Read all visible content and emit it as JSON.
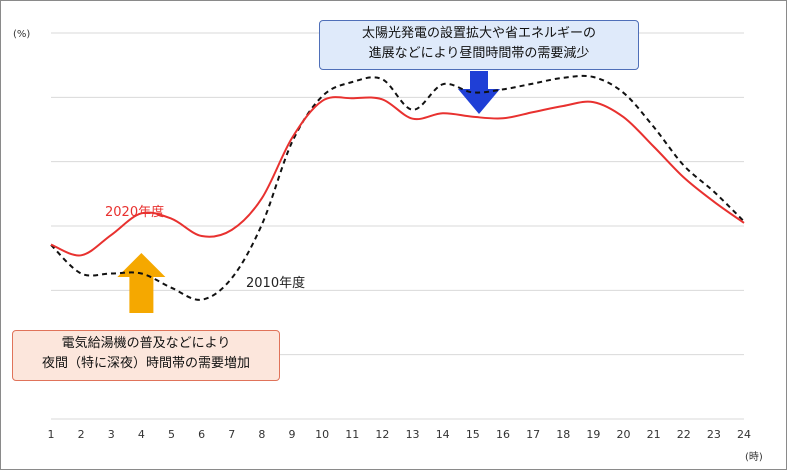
{
  "chart_data": {
    "type": "line",
    "x": [
      1,
      2,
      3,
      4,
      5,
      6,
      7,
      8,
      9,
      10,
      11,
      12,
      13,
      14,
      15,
      16,
      17,
      18,
      19,
      20,
      21,
      22,
      23,
      24
    ],
    "xticks": [
      "1",
      "2",
      "3",
      "4",
      "5",
      "6",
      "7",
      "8",
      "9",
      "10",
      "11",
      "12",
      "13",
      "14",
      "15",
      "16",
      "17",
      "18",
      "19",
      "20",
      "21",
      "22",
      "23",
      "24"
    ],
    "xlabel": "(時)",
    "ylabel": "(%)",
    "ylim": [
      0,
      100
    ],
    "grid": true,
    "series": [
      {
        "name": "2020年度",
        "color": "#e8312f",
        "dash": "solid",
        "values": [
          45.2,
          42.4,
          47.7,
          53.3,
          51.9,
          47.4,
          49.0,
          57.2,
          72.8,
          82.4,
          83.1,
          82.8,
          77.8,
          79.2,
          78.3,
          77.9,
          79.5,
          81.1,
          82.1,
          78.2,
          70.6,
          62.6,
          56.3,
          50.8
        ]
      },
      {
        "name": "2010年度",
        "color": "#111111",
        "dash": "dashed",
        "values": [
          45.1,
          37.7,
          37.7,
          37.7,
          34.0,
          30.9,
          36.5,
          50.4,
          71.7,
          83.6,
          87.3,
          88.0,
          80.1,
          86.7,
          84.6,
          85.4,
          86.9,
          88.4,
          88.6,
          84.5,
          75.7,
          65.7,
          58.9,
          51.2
        ]
      }
    ]
  },
  "annotations": {
    "top_note": [
      "太陽光発電の設置拡大や省エネルギーの",
      "進展などにより昼間時間帯の需要減少"
    ],
    "bottom_note": [
      "電気給湯機の普及などにより",
      "夜間（特に深夜）時間帯の需要増加"
    ],
    "arrow_down_color": "#1f3fd6",
    "arrow_up_color": "#f5a800"
  }
}
